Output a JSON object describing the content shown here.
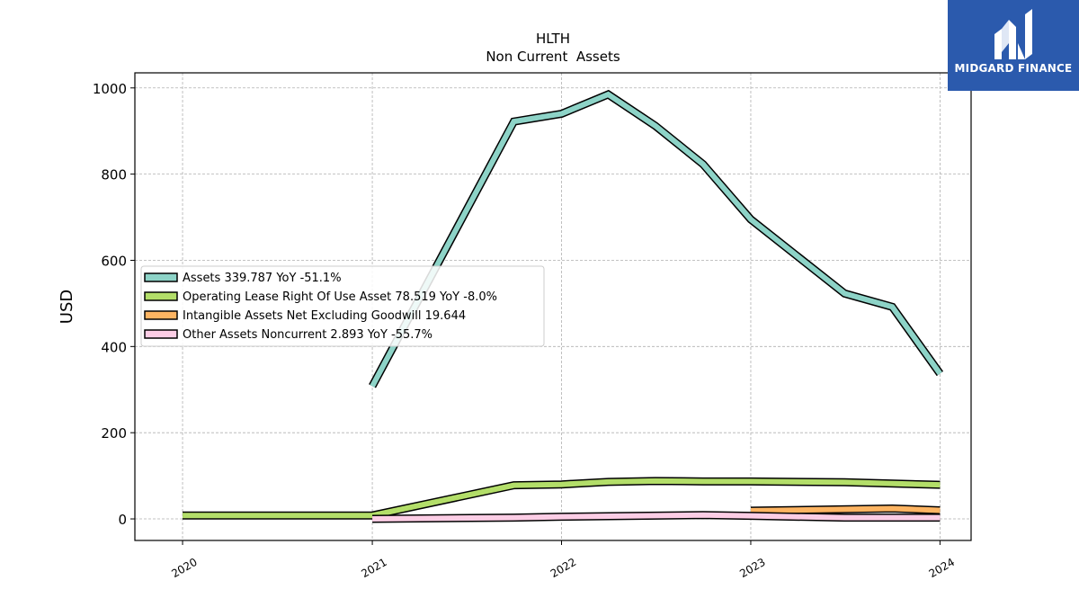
{
  "chart_data": {
    "type": "line",
    "title": "HLTH",
    "subtitle": "Non Current  Assets",
    "ylabel": "USD",
    "xlabel": "",
    "ylim": [
      -50,
      1035
    ],
    "xlim": [
      "2019-10-01",
      "2024-03-01"
    ],
    "grid": true,
    "legend_position": "center-left",
    "y_ticks": [
      0,
      200,
      400,
      600,
      800,
      1000
    ],
    "x_ticks": [
      "2020",
      "2021",
      "2022",
      "2023",
      "2024"
    ],
    "series": [
      {
        "name": "Assets  339.787 YoY -51.1%",
        "color": "#8dd3c7",
        "points": [
          [
            "2021-01-01",
            308
          ],
          [
            "2021-10-01",
            922
          ],
          [
            "2022-01-01",
            940
          ],
          [
            "2022-04-01",
            985
          ],
          [
            "2022-07-01",
            912
          ],
          [
            "2022-10-01",
            823
          ],
          [
            "2023-01-01",
            695
          ],
          [
            "2023-07-01",
            523
          ],
          [
            "2023-10-01",
            492
          ],
          [
            "2024-01-01",
            337
          ]
        ]
      },
      {
        "name": "Operating Lease Right Of Use Asset  78.519 YoY -8.0%",
        "color": "#b3de69",
        "points": [
          [
            "2020-01-01",
            8
          ],
          [
            "2021-01-01",
            8
          ],
          [
            "2021-10-01",
            78
          ],
          [
            "2022-01-01",
            80
          ],
          [
            "2022-04-01",
            86
          ],
          [
            "2022-07-01",
            88
          ],
          [
            "2022-10-01",
            87
          ],
          [
            "2023-01-01",
            87
          ],
          [
            "2023-07-01",
            85
          ],
          [
            "2024-01-01",
            79
          ]
        ]
      },
      {
        "name": "Intangible Assets Net Excluding Goodwill  19.644",
        "color": "#fdb462",
        "points": [
          [
            "2023-01-01",
            19
          ],
          [
            "2023-10-01",
            24
          ],
          [
            "2024-01-01",
            20
          ]
        ]
      },
      {
        "name": "Other Assets Noncurrent  2.893 YoY -55.7%",
        "color": "#fccde5",
        "points": [
          [
            "2021-01-01",
            0
          ],
          [
            "2021-10-01",
            3
          ],
          [
            "2022-01-01",
            5
          ],
          [
            "2022-10-01",
            9
          ],
          [
            "2023-01-01",
            7
          ],
          [
            "2023-07-01",
            3
          ],
          [
            "2024-01-01",
            3
          ]
        ]
      }
    ]
  },
  "brand": {
    "name": "MIDGARD FINANCE",
    "logo_icon": "midgard-logo-icon",
    "color": "#2b5aad"
  }
}
